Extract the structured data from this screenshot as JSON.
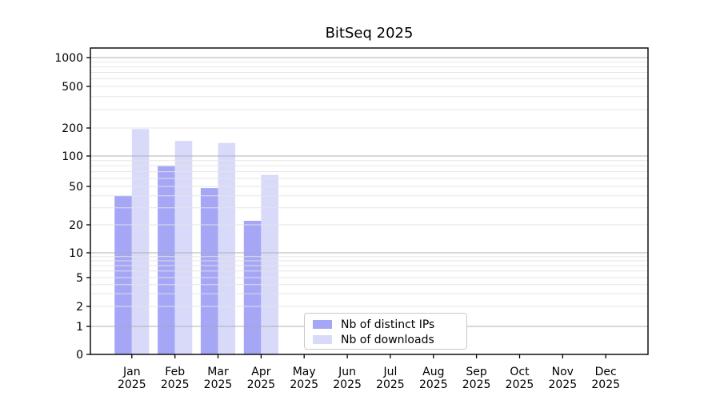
{
  "title": "BitSeq 2025",
  "chart_data": {
    "type": "bar",
    "title": "BitSeq 2025",
    "x_categories": [
      "Jan",
      "Feb",
      "Mar",
      "Apr",
      "May",
      "Jun",
      "Jul",
      "Aug",
      "Sep",
      "Oct",
      "Nov",
      "Dec"
    ],
    "x_year": "2025",
    "series": [
      {
        "name": "Nb of distinct IPs",
        "color": "#a6a6f7",
        "values": [
          40,
          80,
          48,
          22,
          null,
          null,
          null,
          null,
          null,
          null,
          null,
          null
        ]
      },
      {
        "name": "Nb of downloads",
        "color": "#d9d9fa",
        "values": [
          195,
          145,
          138,
          65,
          null,
          null,
          null,
          null,
          null,
          null,
          null,
          null
        ]
      }
    ],
    "y_axis": {
      "scale": "log-like",
      "tick_values": [
        0,
        1,
        2,
        5,
        10,
        20,
        50,
        100,
        200,
        500,
        1000
      ],
      "minor_grid_values": [
        2,
        3,
        4,
        5,
        6,
        7,
        8,
        9,
        20,
        30,
        40,
        50,
        60,
        70,
        80,
        90,
        200,
        300,
        400,
        500,
        600,
        700,
        800,
        900
      ],
      "major_grid_values": [
        1,
        10,
        100,
        1000
      ]
    },
    "legend": {
      "position": "bottom-center"
    },
    "grid": {
      "major": true,
      "minor": true
    }
  },
  "colors": {
    "background": "#ffffff",
    "axis": "#000000",
    "grid_major": "#a8a8a8",
    "grid_minor": "#e3e3e3",
    "bar_ips": "#a6a6f7",
    "bar_downloads": "#d9d9fa"
  }
}
